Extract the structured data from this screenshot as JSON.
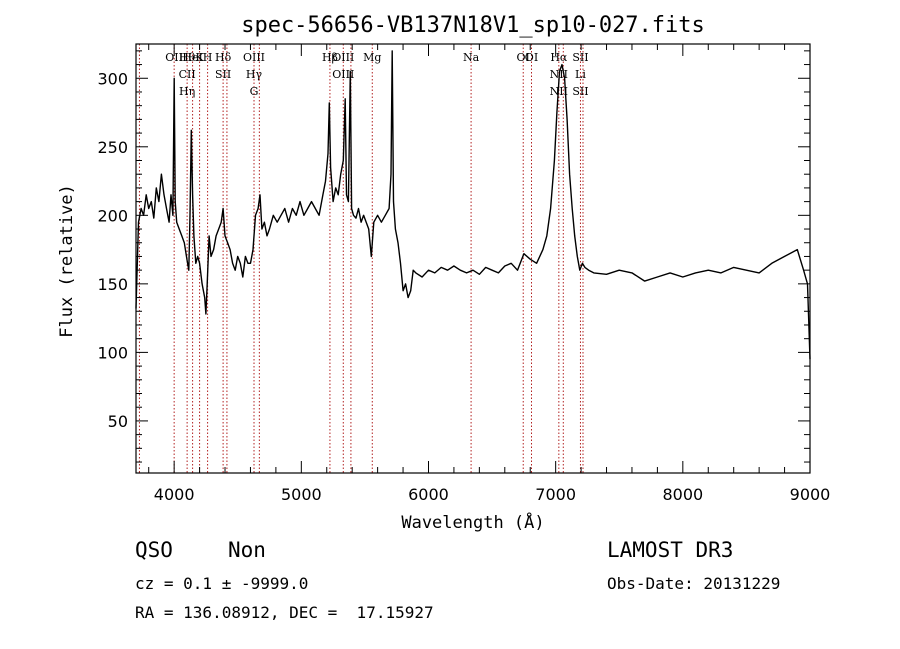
{
  "chart_data": {
    "type": "line",
    "title": "spec-56656-VB137N18V1_sp10-027.fits",
    "xlabel": "Wavelength (Å)",
    "ylabel": "Flux (relative)",
    "xlim": [
      3700,
      9000
    ],
    "ylim": [
      12,
      325
    ],
    "xticks": [
      "4000",
      "5000",
      "6000",
      "7000",
      "8000",
      "9000"
    ],
    "yticks": [
      "50",
      "100",
      "150",
      "200",
      "250",
      "300"
    ],
    "series": [
      {
        "points": [
          [
            3700,
            132
          ],
          [
            3720,
            195
          ],
          [
            3740,
            205
          ],
          [
            3760,
            200
          ],
          [
            3780,
            215
          ],
          [
            3800,
            205
          ],
          [
            3820,
            210
          ],
          [
            3840,
            198
          ],
          [
            3860,
            220
          ],
          [
            3880,
            210
          ],
          [
            3900,
            230
          ],
          [
            3920,
            215
          ],
          [
            3940,
            205
          ],
          [
            3960,
            195
          ],
          [
            3975,
            215
          ],
          [
            3990,
            200
          ],
          [
            4000,
            300
          ],
          [
            4008,
            210
          ],
          [
            4020,
            195
          ],
          [
            4040,
            190
          ],
          [
            4060,
            185
          ],
          [
            4080,
            180
          ],
          [
            4100,
            168
          ],
          [
            4115,
            160
          ],
          [
            4125,
            200
          ],
          [
            4135,
            262
          ],
          [
            4145,
            215
          ],
          [
            4155,
            185
          ],
          [
            4170,
            165
          ],
          [
            4185,
            170
          ],
          [
            4200,
            165
          ],
          [
            4220,
            150
          ],
          [
            4240,
            140
          ],
          [
            4250,
            128
          ],
          [
            4260,
            150
          ],
          [
            4275,
            185
          ],
          [
            4290,
            170
          ],
          [
            4310,
            175
          ],
          [
            4330,
            185
          ],
          [
            4350,
            190
          ],
          [
            4370,
            195
          ],
          [
            4385,
            205
          ],
          [
            4400,
            185
          ],
          [
            4420,
            180
          ],
          [
            4440,
            175
          ],
          [
            4460,
            165
          ],
          [
            4480,
            160
          ],
          [
            4500,
            170
          ],
          [
            4520,
            165
          ],
          [
            4540,
            155
          ],
          [
            4560,
            170
          ],
          [
            4580,
            165
          ],
          [
            4600,
            165
          ],
          [
            4620,
            175
          ],
          [
            4640,
            200
          ],
          [
            4660,
            205
          ],
          [
            4675,
            215
          ],
          [
            4690,
            190
          ],
          [
            4710,
            195
          ],
          [
            4730,
            185
          ],
          [
            4750,
            190
          ],
          [
            4780,
            200
          ],
          [
            4810,
            195
          ],
          [
            4840,
            200
          ],
          [
            4870,
            205
          ],
          [
            4900,
            195
          ],
          [
            4930,
            205
          ],
          [
            4960,
            200
          ],
          [
            4990,
            210
          ],
          [
            5020,
            200
          ],
          [
            5050,
            205
          ],
          [
            5080,
            210
          ],
          [
            5110,
            205
          ],
          [
            5140,
            200
          ],
          [
            5170,
            215
          ],
          [
            5190,
            225
          ],
          [
            5210,
            245
          ],
          [
            5220,
            282
          ],
          [
            5230,
            235
          ],
          [
            5250,
            210
          ],
          [
            5270,
            220
          ],
          [
            5290,
            215
          ],
          [
            5310,
            230
          ],
          [
            5330,
            240
          ],
          [
            5345,
            285
          ],
          [
            5355,
            215
          ],
          [
            5370,
            210
          ],
          [
            5385,
            305
          ],
          [
            5395,
            205
          ],
          [
            5410,
            200
          ],
          [
            5430,
            198
          ],
          [
            5450,
            205
          ],
          [
            5470,
            195
          ],
          [
            5490,
            200
          ],
          [
            5510,
            195
          ],
          [
            5530,
            190
          ],
          [
            5550,
            170
          ],
          [
            5570,
            195
          ],
          [
            5600,
            200
          ],
          [
            5630,
            195
          ],
          [
            5660,
            200
          ],
          [
            5690,
            205
          ],
          [
            5705,
            230
          ],
          [
            5715,
            320
          ],
          [
            5725,
            210
          ],
          [
            5740,
            190
          ],
          [
            5760,
            180
          ],
          [
            5780,
            165
          ],
          [
            5800,
            145
          ],
          [
            5820,
            150
          ],
          [
            5840,
            140
          ],
          [
            5860,
            145
          ],
          [
            5880,
            160
          ],
          [
            5900,
            158
          ],
          [
            5950,
            155
          ],
          [
            6000,
            160
          ],
          [
            6050,
            158
          ],
          [
            6100,
            162
          ],
          [
            6150,
            160
          ],
          [
            6200,
            163
          ],
          [
            6250,
            160
          ],
          [
            6300,
            158
          ],
          [
            6350,
            160
          ],
          [
            6400,
            157
          ],
          [
            6450,
            162
          ],
          [
            6500,
            160
          ],
          [
            6550,
            158
          ],
          [
            6600,
            163
          ],
          [
            6650,
            165
          ],
          [
            6700,
            160
          ],
          [
            6750,
            172
          ],
          [
            6800,
            168
          ],
          [
            6850,
            165
          ],
          [
            6900,
            175
          ],
          [
            6930,
            185
          ],
          [
            6960,
            205
          ],
          [
            6990,
            240
          ],
          [
            7010,
            275
          ],
          [
            7030,
            305
          ],
          [
            7050,
            310
          ],
          [
            7070,
            300
          ],
          [
            7090,
            270
          ],
          [
            7110,
            230
          ],
          [
            7130,
            205
          ],
          [
            7150,
            185
          ],
          [
            7170,
            170
          ],
          [
            7190,
            160
          ],
          [
            7210,
            165
          ],
          [
            7230,
            162
          ],
          [
            7260,
            160
          ],
          [
            7300,
            158
          ],
          [
            7400,
            157
          ],
          [
            7500,
            160
          ],
          [
            7600,
            158
          ],
          [
            7700,
            152
          ],
          [
            7800,
            155
          ],
          [
            7900,
            158
          ],
          [
            8000,
            155
          ],
          [
            8100,
            158
          ],
          [
            8200,
            160
          ],
          [
            8300,
            158
          ],
          [
            8400,
            162
          ],
          [
            8500,
            160
          ],
          [
            8600,
            158
          ],
          [
            8700,
            165
          ],
          [
            8800,
            170
          ],
          [
            8900,
            175
          ],
          [
            8950,
            160
          ],
          [
            8980,
            150
          ],
          [
            9000,
            95
          ]
        ]
      }
    ],
    "line_markers": [
      {
        "wl": 3727,
        "labels": []
      },
      {
        "wl": 4000,
        "labels": [
          "OII"
        ]
      },
      {
        "wl": 4102,
        "labels": [
          "Hθ",
          "CII",
          "Hη"
        ]
      },
      {
        "wl": 4145,
        "labels": [
          "HeI"
        ]
      },
      {
        "wl": 4200,
        "labels": [
          "K"
        ]
      },
      {
        "wl": 4263,
        "labels": [
          "H"
        ]
      },
      {
        "wl": 4385,
        "labels": [
          "Hδ",
          "SII"
        ]
      },
      {
        "wl": 4415,
        "labels": []
      },
      {
        "wl": 4628,
        "labels": [
          "OIII",
          "Hγ",
          "G"
        ]
      },
      {
        "wl": 4670,
        "labels": []
      },
      {
        "wl": 5225,
        "labels": [
          "Hβ"
        ]
      },
      {
        "wl": 5330,
        "labels": [
          "OIII",
          "OIII"
        ]
      },
      {
        "wl": 5390,
        "labels": []
      },
      {
        "wl": 5558,
        "labels": [
          "Mg"
        ]
      },
      {
        "wl": 6335,
        "labels": [
          "Na"
        ]
      },
      {
        "wl": 6745,
        "labels": [
          "OI"
        ]
      },
      {
        "wl": 6810,
        "labels": [
          "OI"
        ]
      },
      {
        "wl": 7025,
        "labels": [
          "Hα",
          "NII",
          "NII"
        ]
      },
      {
        "wl": 7060,
        "labels": []
      },
      {
        "wl": 7195,
        "labels": [
          "SII",
          "Li",
          "SII"
        ]
      },
      {
        "wl": 7215,
        "labels": []
      }
    ],
    "grid": false,
    "legend": "none"
  },
  "info": {
    "class": "QSO",
    "subclass": "Non",
    "survey": "LAMOST DR3",
    "cz": "cz = 0.1 ± -9999.0",
    "obs_date": "Obs-Date: 20131229",
    "coords": "RA = 136.08912, DEC =  17.15927"
  },
  "colors": {
    "spectrum": "#000000",
    "marker": "#b22222",
    "axes": "#000000"
  }
}
